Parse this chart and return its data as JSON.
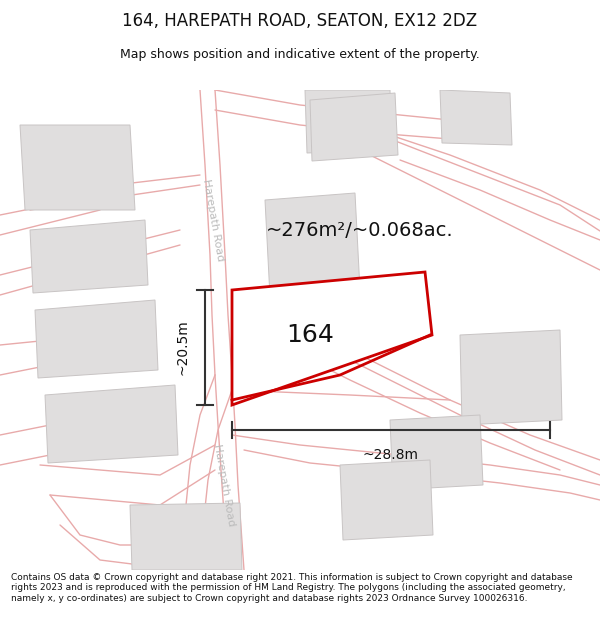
{
  "title": "164, HAREPATH ROAD, SEATON, EX12 2DZ",
  "subtitle": "Map shows position and indicative extent of the property.",
  "footer": "Contains OS data © Crown copyright and database right 2021. This information is subject to Crown copyright and database rights 2023 and is reproduced with the permission of HM Land Registry. The polygons (including the associated geometry, namely x, y co-ordinates) are subject to Crown copyright and database rights 2023 Ordnance Survey 100026316.",
  "map_bg": "#f7f5f5",
  "road_color": "#e8aaaa",
  "building_color": "#e0dede",
  "building_edge": "#c8c4c4",
  "plot_fill": "#ffffff",
  "plot_edge": "#cc0000",
  "plot_edge_width": 2.0,
  "area_text": "~276m²/~0.068ac.",
  "number_text": "164",
  "dim_h_text": "~28.8m",
  "dim_v_text": "~20.5m",
  "road_label": "Harepath Road",
  "figsize": [
    6.0,
    6.25
  ],
  "dpi": 100,
  "road_lw": 1.0,
  "road_label_color": "#bbbbbb",
  "dim_color": "#333333",
  "dim_lw": 1.5,
  "number_fontsize": 18,
  "area_fontsize": 14,
  "dim_fontsize": 10,
  "road_label_fontsize": 8
}
